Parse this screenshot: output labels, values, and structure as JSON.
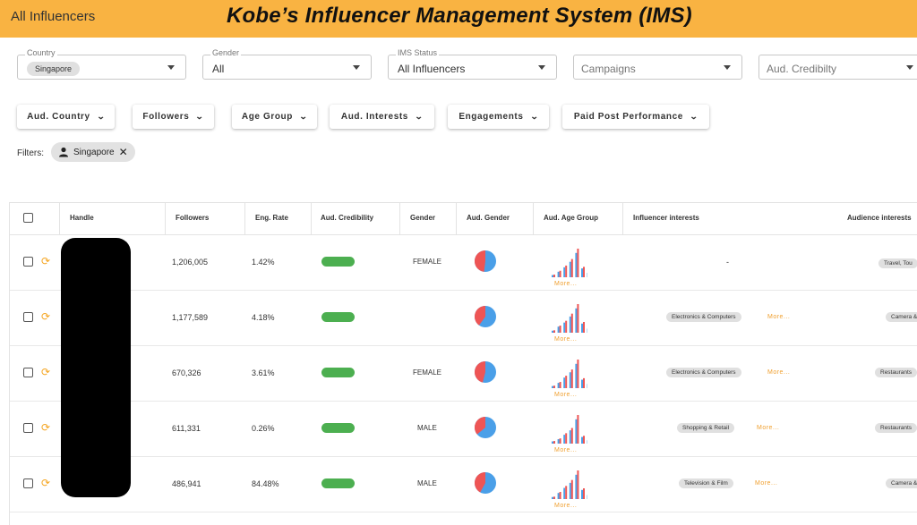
{
  "header": {
    "tab_label": "All Influencers",
    "title": "Kobe’s Influencer Management System (IMS)"
  },
  "fields": {
    "country": {
      "label": "Country",
      "value": "Singapore"
    },
    "gender": {
      "label": "Gender",
      "value": "All"
    },
    "ims_status": {
      "label": "IMS Status",
      "value": "All Influencers"
    },
    "campaigns": {
      "placeholder": "Campaigns"
    },
    "aud_credibility": {
      "placeholder": "Aud. Credibilty"
    }
  },
  "filter_buttons": [
    "Aud. Country",
    "Followers",
    "Age Group",
    "Aud. Interests",
    "Engagements",
    "Paid Post Performance"
  ],
  "active_filters": {
    "label": "Filters:",
    "chip": "Singapore"
  },
  "table": {
    "headers": [
      "Handle",
      "Followers",
      "Eng. Rate",
      "Aud. Credibility",
      "Gender",
      "Aud. Gender",
      "Aud. Age Group",
      "Influencer interests",
      "Audience interests"
    ],
    "more_label": "More...",
    "rows": [
      {
        "followers": "1,206,005",
        "eng_rate": "1.42%",
        "gender": "FEMALE",
        "female_share": 0.48,
        "age_bars": [
          2,
          5,
          9,
          14,
          22,
          8,
          4,
          2
        ],
        "influencer_interest": "-",
        "audience_interest": "Travel, Tou"
      },
      {
        "followers": "1,177,589",
        "eng_rate": "4.18%",
        "gender": "",
        "female_share": 0.4,
        "age_bars": [
          2,
          6,
          10,
          16,
          24,
          9,
          4,
          2
        ],
        "influencer_interest": "Electronics & Computers",
        "audience_interest": "Camera &"
      },
      {
        "followers": "670,326",
        "eng_rate": "3.61%",
        "gender": "FEMALE",
        "female_share": 0.46,
        "age_bars": [
          2,
          5,
          10,
          15,
          23,
          8,
          4,
          2
        ],
        "influencer_interest": "Electronics & Computers",
        "audience_interest": "Restaurants"
      },
      {
        "followers": "611,331",
        "eng_rate": "0.26%",
        "gender": "MALE",
        "female_share": 0.36,
        "age_bars": [
          2,
          4,
          8,
          12,
          22,
          6,
          3,
          1
        ],
        "influencer_interest": "Shopping & Retail",
        "audience_interest": "Restaurants"
      },
      {
        "followers": "486,941",
        "eng_rate": "84.48%",
        "gender": "MALE",
        "female_share": 0.42,
        "age_bars": [
          2,
          6,
          11,
          16,
          24,
          9,
          4,
          2
        ],
        "influencer_interest": "Television & Film",
        "audience_interest": "Camera &"
      }
    ]
  },
  "colors": {
    "accent": "#f9b342",
    "female": "#ee5555",
    "male": "#4a9fe8",
    "credibility": "#4caf50"
  }
}
